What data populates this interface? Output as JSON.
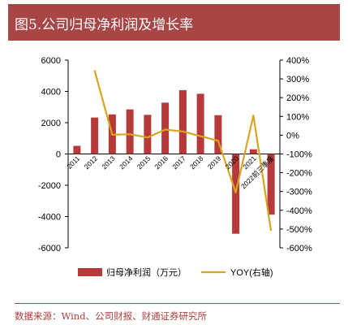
{
  "header": {
    "title": "图5.公司归母净利润及增长率"
  },
  "source": "数据来源：Wind、公司财报、财通证券研究所",
  "colors": {
    "accent": "#a84545",
    "bar": "#b73a3a",
    "line": "#d9a521",
    "footer_text": "#a84040"
  },
  "chart_data": {
    "type": "bar",
    "categories": [
      "2011",
      "2012",
      "2013",
      "2014",
      "2015",
      "2016",
      "2017",
      "2018",
      "2019",
      "2020",
      "2021",
      "2022前三季度"
    ],
    "series": [
      {
        "name": "归母净利润（万元）",
        "type": "bar",
        "axis": "left",
        "values": [
          520,
          2330,
          2530,
          2850,
          2500,
          3280,
          4080,
          3850,
          2480,
          -5100,
          300,
          -3880
        ]
      },
      {
        "name": "YOY(右轴)",
        "type": "line",
        "axis": "right",
        "values": [
          null,
          345,
          2,
          5,
          -12,
          30,
          20,
          -5,
          -30,
          -305,
          105,
          -510
        ]
      }
    ],
    "yticks_left": [
      "6000",
      "4000",
      "2000",
      "0",
      "-2000",
      "-4000",
      "-6000"
    ],
    "yticks_right": [
      "400%",
      "300%",
      "200%",
      "100%",
      "0%",
      "-100%",
      "-200%",
      "-300%",
      "-400%",
      "-500%",
      "-600%"
    ],
    "ylim_left": [
      -6000,
      6000
    ],
    "ylim_right": [
      -600,
      400
    ],
    "grid": false,
    "legend_position": "bottom"
  }
}
